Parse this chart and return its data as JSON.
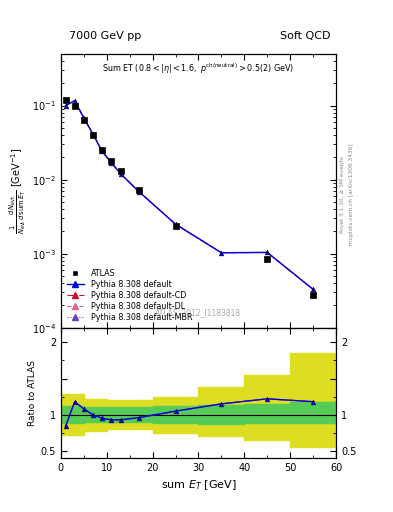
{
  "title_left": "7000 GeV pp",
  "title_right": "Soft QCD",
  "watermark": "ATLAS_2012_I1183818",
  "right_label_top": "Rivet 3.1.10, ≥ 3M events",
  "right_label_bottom": "mcplots.cern.ch [arXiv:1306.3436]",
  "xlim": [
    0,
    60
  ],
  "ylim_main": [
    0.0001,
    0.5
  ],
  "ylim_ratio": [
    0.4,
    2.2
  ],
  "atlas_x": [
    1,
    3,
    5,
    7,
    9,
    11,
    13,
    17,
    25,
    45,
    55
  ],
  "atlas_y": [
    0.12,
    0.098,
    0.063,
    0.04,
    0.025,
    0.018,
    0.013,
    0.0072,
    0.0024,
    0.00085,
    0.00028
  ],
  "pythia_x": [
    1,
    3,
    5,
    7,
    9,
    11,
    13,
    17,
    25,
    35,
    45,
    55
  ],
  "pythia_default_y": [
    0.1,
    0.116,
    0.068,
    0.041,
    0.024,
    0.017,
    0.012,
    0.0069,
    0.0025,
    0.00103,
    0.00104,
    0.00033
  ],
  "ratio_x": [
    1,
    3,
    5,
    7,
    9,
    11,
    13,
    17,
    25,
    35,
    45,
    55
  ],
  "ratio_default": [
    0.84,
    1.18,
    1.08,
    1.0,
    0.95,
    0.93,
    0.93,
    0.96,
    1.05,
    1.15,
    1.22,
    1.18
  ],
  "green_band_x": [
    0,
    2,
    5,
    10,
    15,
    20,
    30,
    40,
    50,
    60
  ],
  "green_band_lo": [
    0.88,
    0.88,
    0.9,
    0.9,
    0.9,
    0.88,
    0.87,
    0.88,
    0.88,
    0.88
  ],
  "green_band_hi": [
    1.12,
    1.12,
    1.1,
    1.1,
    1.1,
    1.12,
    1.13,
    1.15,
    1.18,
    1.2
  ],
  "yellow_band_x": [
    0,
    2,
    5,
    10,
    15,
    20,
    30,
    40,
    50,
    60
  ],
  "yellow_band_lo": [
    0.72,
    0.72,
    0.78,
    0.8,
    0.8,
    0.75,
    0.7,
    0.65,
    0.55,
    0.42
  ],
  "yellow_band_hi": [
    1.28,
    1.28,
    1.22,
    1.2,
    1.2,
    1.25,
    1.38,
    1.55,
    1.85,
    2.15
  ],
  "atlas_color": "#000000",
  "pythia_default_color": "#0000dd",
  "pythia_cd_color": "#cc1133",
  "pythia_dl_color": "#dd6688",
  "pythia_mbr_color": "#6644bb",
  "green_color": "#55cc55",
  "yellow_color": "#dddd22"
}
